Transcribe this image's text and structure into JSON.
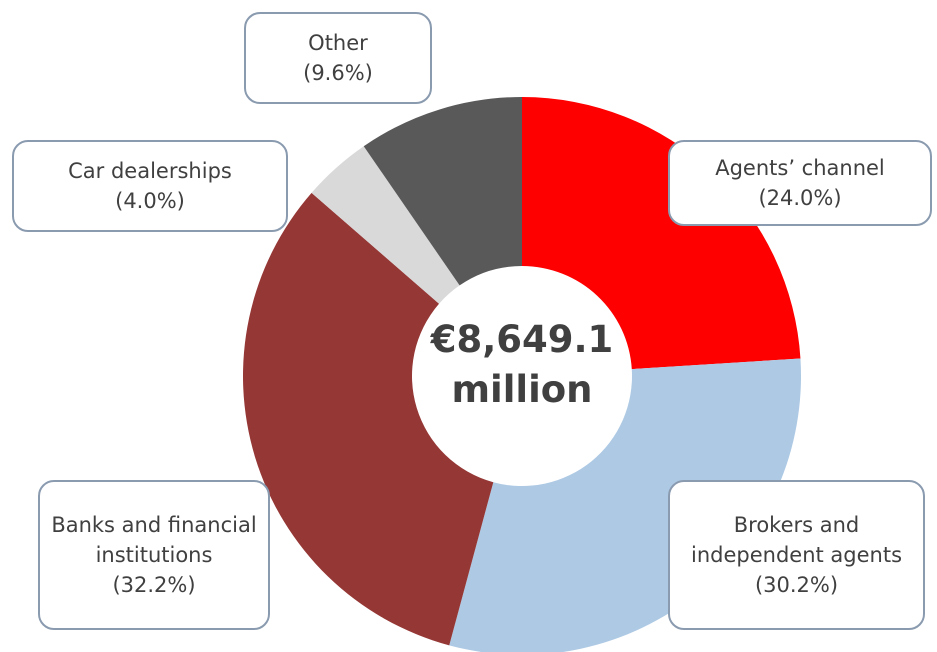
{
  "chart_data": {
    "type": "donut",
    "center_label": "€8,649.1 million",
    "categories": [
      "Agents’ channel",
      "Brokers and independent agents",
      "Banks and financial institutions",
      "Car dealerships",
      "Other"
    ],
    "values": [
      24.0,
      30.2,
      32.2,
      4.0,
      9.6
    ],
    "value_labels": [
      "(24.0%)",
      "(30.2%)",
      "(32.2%)",
      "(4.0%)",
      "(9.6%)"
    ],
    "colors": [
      "#ff0000",
      "#adc9e4",
      "#953735",
      "#d9d9d9",
      "#595959"
    ]
  }
}
